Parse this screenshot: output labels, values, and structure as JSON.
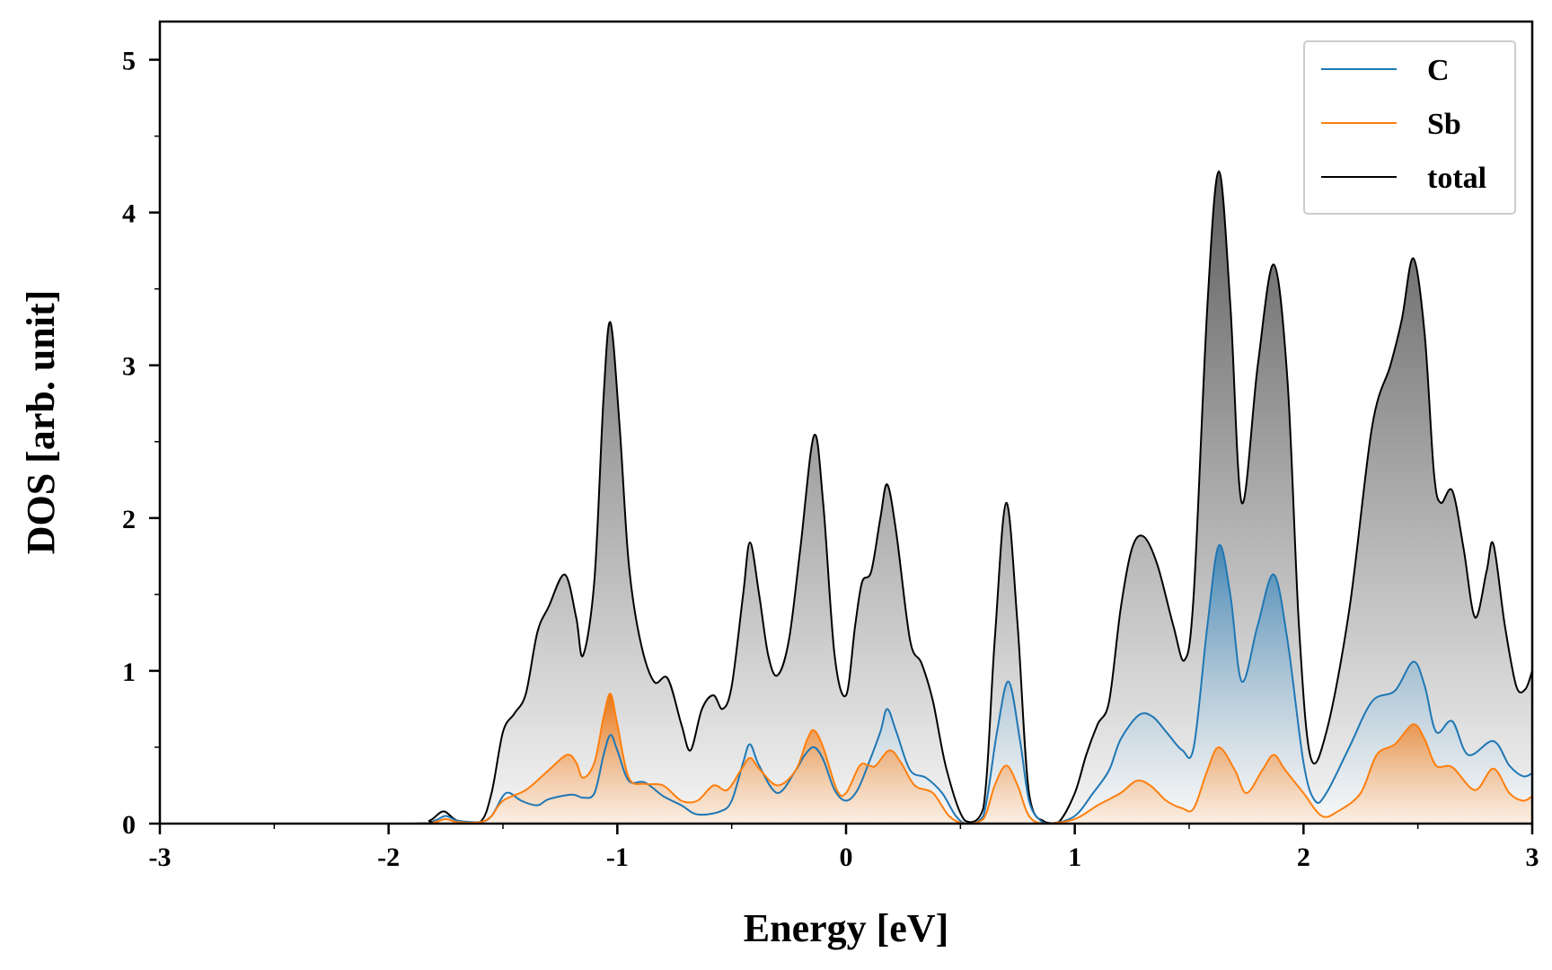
{
  "chart_data": {
    "type": "area",
    "title": "",
    "xlabel": "Energy [eV]",
    "ylabel": "DOS [arb. unit]",
    "xlim": [
      -3,
      3
    ],
    "ylim": [
      0,
      5.25
    ],
    "x_ticks": [
      -3,
      -2,
      -1,
      0,
      1,
      2,
      3
    ],
    "x_tick_labels": [
      "-3",
      "-2",
      "-1",
      "0",
      "1",
      "2",
      "3"
    ],
    "y_ticks": [
      0,
      1,
      2,
      3,
      4,
      5
    ],
    "y_tick_labels": [
      "0",
      "1",
      "2",
      "3",
      "4",
      "5"
    ],
    "grid": false,
    "legend_position": "top-right",
    "series": [
      {
        "name": "C",
        "color": "#1f77b4",
        "points": [
          [
            -3.0,
            0.0
          ],
          [
            -1.9,
            0.0
          ],
          [
            -1.8,
            0.02
          ],
          [
            -1.75,
            0.05
          ],
          [
            -1.7,
            0.02
          ],
          [
            -1.6,
            0.01
          ],
          [
            -1.55,
            0.05
          ],
          [
            -1.5,
            0.18
          ],
          [
            -1.47,
            0.2
          ],
          [
            -1.42,
            0.15
          ],
          [
            -1.35,
            0.12
          ],
          [
            -1.3,
            0.16
          ],
          [
            -1.2,
            0.19
          ],
          [
            -1.15,
            0.17
          ],
          [
            -1.1,
            0.2
          ],
          [
            -1.06,
            0.45
          ],
          [
            -1.03,
            0.58
          ],
          [
            -1.0,
            0.48
          ],
          [
            -0.95,
            0.28
          ],
          [
            -0.88,
            0.27
          ],
          [
            -0.8,
            0.18
          ],
          [
            -0.72,
            0.12
          ],
          [
            -0.65,
            0.06
          ],
          [
            -0.55,
            0.08
          ],
          [
            -0.5,
            0.15
          ],
          [
            -0.45,
            0.4
          ],
          [
            -0.42,
            0.52
          ],
          [
            -0.38,
            0.38
          ],
          [
            -0.3,
            0.2
          ],
          [
            -0.22,
            0.35
          ],
          [
            -0.18,
            0.45
          ],
          [
            -0.14,
            0.5
          ],
          [
            -0.1,
            0.42
          ],
          [
            -0.05,
            0.22
          ],
          [
            0.0,
            0.15
          ],
          [
            0.05,
            0.22
          ],
          [
            0.1,
            0.4
          ],
          [
            0.15,
            0.6
          ],
          [
            0.18,
            0.75
          ],
          [
            0.22,
            0.6
          ],
          [
            0.28,
            0.35
          ],
          [
            0.35,
            0.3
          ],
          [
            0.42,
            0.2
          ],
          [
            0.48,
            0.05
          ],
          [
            0.53,
            0.0
          ],
          [
            0.6,
            0.05
          ],
          [
            0.66,
            0.6
          ],
          [
            0.71,
            0.93
          ],
          [
            0.76,
            0.55
          ],
          [
            0.8,
            0.15
          ],
          [
            0.85,
            0.02
          ],
          [
            0.9,
            0.0
          ],
          [
            1.0,
            0.05
          ],
          [
            1.08,
            0.2
          ],
          [
            1.15,
            0.35
          ],
          [
            1.2,
            0.55
          ],
          [
            1.28,
            0.71
          ],
          [
            1.34,
            0.7
          ],
          [
            1.4,
            0.6
          ],
          [
            1.47,
            0.48
          ],
          [
            1.52,
            0.5
          ],
          [
            1.58,
            1.3
          ],
          [
            1.63,
            1.82
          ],
          [
            1.68,
            1.5
          ],
          [
            1.73,
            0.93
          ],
          [
            1.8,
            1.3
          ],
          [
            1.87,
            1.63
          ],
          [
            1.93,
            1.2
          ],
          [
            2.0,
            0.4
          ],
          [
            2.05,
            0.15
          ],
          [
            2.1,
            0.2
          ],
          [
            2.2,
            0.5
          ],
          [
            2.3,
            0.8
          ],
          [
            2.4,
            0.87
          ],
          [
            2.48,
            1.06
          ],
          [
            2.53,
            0.9
          ],
          [
            2.58,
            0.6
          ],
          [
            2.65,
            0.67
          ],
          [
            2.72,
            0.45
          ],
          [
            2.83,
            0.54
          ],
          [
            2.9,
            0.38
          ],
          [
            2.96,
            0.31
          ],
          [
            3.0,
            0.33
          ]
        ]
      },
      {
        "name": "Sb",
        "color": "#ff7f0e",
        "points": [
          [
            -3.0,
            0.0
          ],
          [
            -1.9,
            0.0
          ],
          [
            -1.8,
            0.01
          ],
          [
            -1.75,
            0.03
          ],
          [
            -1.7,
            0.01
          ],
          [
            -1.6,
            0.01
          ],
          [
            -1.55,
            0.05
          ],
          [
            -1.5,
            0.15
          ],
          [
            -1.4,
            0.22
          ],
          [
            -1.3,
            0.35
          ],
          [
            -1.22,
            0.45
          ],
          [
            -1.18,
            0.4
          ],
          [
            -1.15,
            0.3
          ],
          [
            -1.1,
            0.4
          ],
          [
            -1.06,
            0.7
          ],
          [
            -1.03,
            0.85
          ],
          [
            -1.0,
            0.65
          ],
          [
            -0.95,
            0.3
          ],
          [
            -0.88,
            0.26
          ],
          [
            -0.8,
            0.25
          ],
          [
            -0.72,
            0.15
          ],
          [
            -0.65,
            0.15
          ],
          [
            -0.58,
            0.25
          ],
          [
            -0.52,
            0.22
          ],
          [
            -0.46,
            0.35
          ],
          [
            -0.42,
            0.43
          ],
          [
            -0.38,
            0.36
          ],
          [
            -0.3,
            0.25
          ],
          [
            -0.22,
            0.35
          ],
          [
            -0.17,
            0.55
          ],
          [
            -0.14,
            0.61
          ],
          [
            -0.1,
            0.5
          ],
          [
            -0.04,
            0.22
          ],
          [
            0.0,
            0.2
          ],
          [
            0.06,
            0.38
          ],
          [
            0.1,
            0.38
          ],
          [
            0.13,
            0.38
          ],
          [
            0.19,
            0.48
          ],
          [
            0.24,
            0.4
          ],
          [
            0.3,
            0.25
          ],
          [
            0.38,
            0.2
          ],
          [
            0.45,
            0.05
          ],
          [
            0.52,
            0.0
          ],
          [
            0.6,
            0.03
          ],
          [
            0.65,
            0.25
          ],
          [
            0.7,
            0.38
          ],
          [
            0.75,
            0.25
          ],
          [
            0.8,
            0.05
          ],
          [
            0.87,
            0.0
          ],
          [
            1.0,
            0.03
          ],
          [
            1.1,
            0.12
          ],
          [
            1.2,
            0.2
          ],
          [
            1.27,
            0.28
          ],
          [
            1.33,
            0.25
          ],
          [
            1.4,
            0.15
          ],
          [
            1.47,
            0.1
          ],
          [
            1.52,
            0.1
          ],
          [
            1.58,
            0.35
          ],
          [
            1.63,
            0.5
          ],
          [
            1.7,
            0.35
          ],
          [
            1.75,
            0.2
          ],
          [
            1.82,
            0.35
          ],
          [
            1.87,
            0.45
          ],
          [
            1.92,
            0.35
          ],
          [
            2.0,
            0.2
          ],
          [
            2.08,
            0.05
          ],
          [
            2.15,
            0.08
          ],
          [
            2.25,
            0.2
          ],
          [
            2.32,
            0.45
          ],
          [
            2.4,
            0.52
          ],
          [
            2.48,
            0.65
          ],
          [
            2.53,
            0.55
          ],
          [
            2.58,
            0.38
          ],
          [
            2.65,
            0.37
          ],
          [
            2.75,
            0.22
          ],
          [
            2.83,
            0.36
          ],
          [
            2.9,
            0.2
          ],
          [
            2.96,
            0.15
          ],
          [
            3.0,
            0.18
          ]
        ]
      },
      {
        "name": "total",
        "color": "#000000",
        "points": [
          [
            -3.0,
            0.0
          ],
          [
            -1.9,
            0.0
          ],
          [
            -1.82,
            0.02
          ],
          [
            -1.76,
            0.08
          ],
          [
            -1.7,
            0.02
          ],
          [
            -1.6,
            0.01
          ],
          [
            -1.55,
            0.2
          ],
          [
            -1.5,
            0.6
          ],
          [
            -1.45,
            0.72
          ],
          [
            -1.4,
            0.85
          ],
          [
            -1.35,
            1.25
          ],
          [
            -1.3,
            1.42
          ],
          [
            -1.23,
            1.63
          ],
          [
            -1.18,
            1.35
          ],
          [
            -1.15,
            1.1
          ],
          [
            -1.1,
            1.6
          ],
          [
            -1.06,
            2.8
          ],
          [
            -1.03,
            3.28
          ],
          [
            -0.99,
            2.6
          ],
          [
            -0.95,
            1.7
          ],
          [
            -0.9,
            1.2
          ],
          [
            -0.84,
            0.93
          ],
          [
            -0.78,
            0.95
          ],
          [
            -0.72,
            0.65
          ],
          [
            -0.68,
            0.48
          ],
          [
            -0.63,
            0.75
          ],
          [
            -0.58,
            0.84
          ],
          [
            -0.54,
            0.75
          ],
          [
            -0.5,
            0.9
          ],
          [
            -0.45,
            1.5
          ],
          [
            -0.42,
            1.84
          ],
          [
            -0.38,
            1.5
          ],
          [
            -0.34,
            1.1
          ],
          [
            -0.3,
            0.97
          ],
          [
            -0.25,
            1.2
          ],
          [
            -0.2,
            1.8
          ],
          [
            -0.14,
            2.54
          ],
          [
            -0.1,
            2.1
          ],
          [
            -0.05,
            1.1
          ],
          [
            0.0,
            0.84
          ],
          [
            0.04,
            1.3
          ],
          [
            0.07,
            1.58
          ],
          [
            0.11,
            1.65
          ],
          [
            0.15,
            2.0
          ],
          [
            0.18,
            2.22
          ],
          [
            0.22,
            1.9
          ],
          [
            0.28,
            1.2
          ],
          [
            0.33,
            1.05
          ],
          [
            0.38,
            0.8
          ],
          [
            0.44,
            0.35
          ],
          [
            0.52,
            0.02
          ],
          [
            0.6,
            0.1
          ],
          [
            0.65,
            1.2
          ],
          [
            0.7,
            2.1
          ],
          [
            0.75,
            1.3
          ],
          [
            0.8,
            0.2
          ],
          [
            0.87,
            0.01
          ],
          [
            0.93,
            0.01
          ],
          [
            1.0,
            0.2
          ],
          [
            1.05,
            0.45
          ],
          [
            1.1,
            0.65
          ],
          [
            1.15,
            0.8
          ],
          [
            1.2,
            1.4
          ],
          [
            1.25,
            1.8
          ],
          [
            1.3,
            1.88
          ],
          [
            1.36,
            1.7
          ],
          [
            1.43,
            1.3
          ],
          [
            1.48,
            1.07
          ],
          [
            1.52,
            1.5
          ],
          [
            1.58,
            3.4
          ],
          [
            1.63,
            4.27
          ],
          [
            1.68,
            3.4
          ],
          [
            1.73,
            2.1
          ],
          [
            1.8,
            3.0
          ],
          [
            1.87,
            3.66
          ],
          [
            1.93,
            2.9
          ],
          [
            1.98,
            1.3
          ],
          [
            2.03,
            0.44
          ],
          [
            2.1,
            0.6
          ],
          [
            2.2,
            1.4
          ],
          [
            2.3,
            2.6
          ],
          [
            2.38,
            3.0
          ],
          [
            2.43,
            3.3
          ],
          [
            2.48,
            3.7
          ],
          [
            2.53,
            3.2
          ],
          [
            2.57,
            2.3
          ],
          [
            2.6,
            2.1
          ],
          [
            2.65,
            2.18
          ],
          [
            2.7,
            1.8
          ],
          [
            2.75,
            1.35
          ],
          [
            2.8,
            1.65
          ],
          [
            2.83,
            1.83
          ],
          [
            2.88,
            1.3
          ],
          [
            2.93,
            0.9
          ],
          [
            2.97,
            0.88
          ],
          [
            3.0,
            1.0
          ]
        ]
      }
    ]
  }
}
